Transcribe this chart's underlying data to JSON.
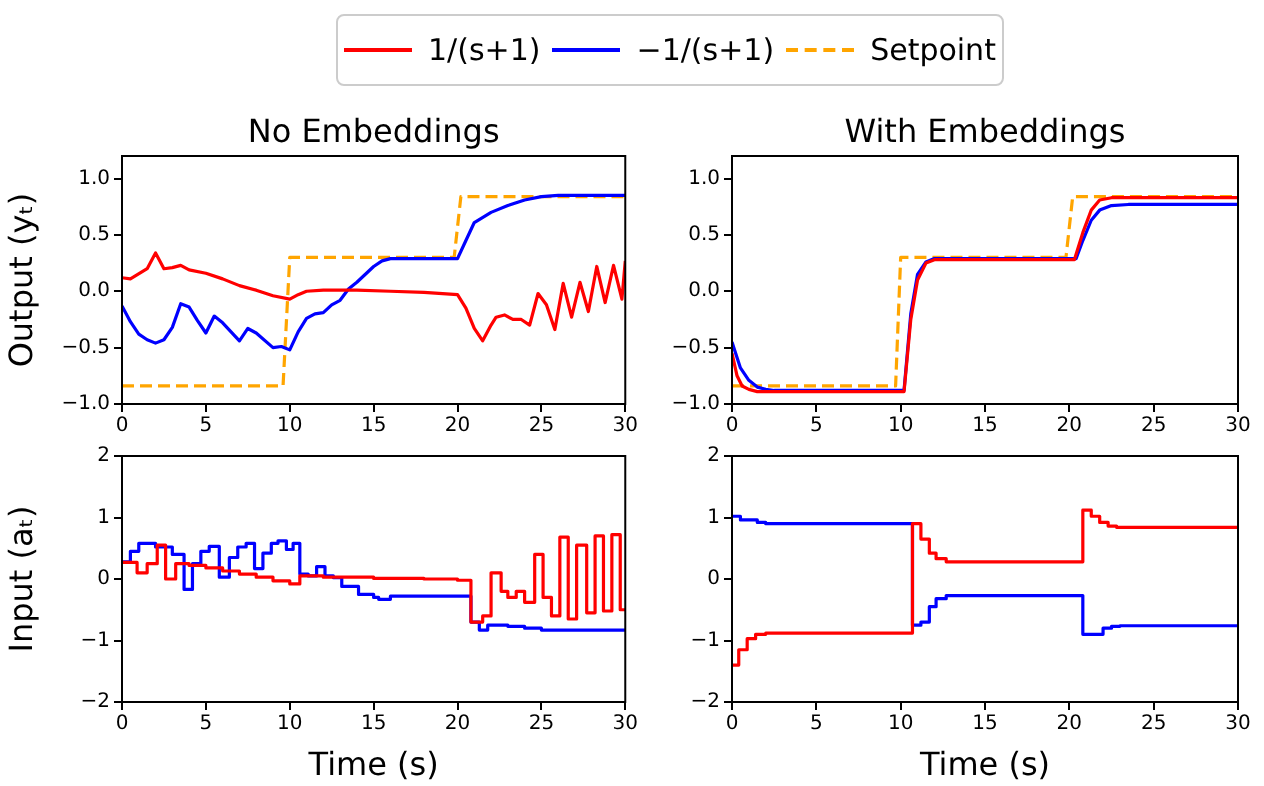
{
  "chart_data": [
    {
      "type": "line",
      "title": "No Embeddings",
      "ylabel": "Output (yₜ)",
      "legend": "top",
      "xlim": [
        0,
        30
      ],
      "xticks": [
        0,
        5,
        10,
        15,
        20,
        25,
        30
      ],
      "ylim": [
        -1,
        1.2
      ],
      "yticks": [
        {
          "value": -1,
          "label": "−1.0"
        },
        {
          "value": -0.5,
          "label": "−0.5"
        },
        {
          "value": 0,
          "label": "0.0"
        },
        0.5,
        {
          "value": 1,
          "label": "1.0"
        }
      ],
      "series": [
        {
          "name": "1/(s+1)",
          "color": "#ff0000",
          "line_style": "solid",
          "x": [
            0,
            0.5,
            1.5,
            2,
            2.5,
            3,
            3.5,
            4,
            5,
            6,
            7,
            8,
            9,
            10,
            10.5,
            11,
            12,
            14,
            16,
            18,
            20,
            20.5,
            21,
            21.5,
            22,
            22.3,
            22.8,
            23.3,
            23.8,
            24.3,
            24.8,
            25.3,
            25.8,
            26.3,
            26.8,
            27.3,
            27.8,
            28.3,
            28.8,
            29.3,
            29.8,
            30
          ],
          "values": [
            0.12,
            0.11,
            0.2,
            0.34,
            0.2,
            0.21,
            0.23,
            0.19,
            0.16,
            0.11,
            0.05,
            0.01,
            -0.04,
            -0.07,
            -0.03,
            0,
            0.01,
            0.01,
            0,
            -0.01,
            -0.03,
            -0.15,
            -0.33,
            -0.44,
            -0.3,
            -0.23,
            -0.21,
            -0.25,
            -0.25,
            -0.3,
            -0.02,
            -0.12,
            -0.34,
            0.07,
            -0.23,
            0.08,
            -0.18,
            0.22,
            -0.1,
            0.23,
            -0.07,
            0.27
          ]
        },
        {
          "name": "−1/(s+1)",
          "color": "#0000ff",
          "line_style": "solid",
          "x": [
            0,
            0.5,
            1,
            1.5,
            2,
            2.5,
            3,
            3.5,
            4,
            4.5,
            5,
            5.5,
            6,
            7,
            7.5,
            8,
            9,
            9.5,
            10,
            10.5,
            11,
            11.5,
            12,
            12.5,
            13,
            13.5,
            14,
            15,
            15.5,
            16,
            20,
            20.5,
            21,
            22,
            23,
            24,
            25,
            26,
            30
          ],
          "values": [
            -0.13,
            -0.27,
            -0.38,
            -0.43,
            -0.46,
            -0.43,
            -0.32,
            -0.11,
            -0.14,
            -0.26,
            -0.37,
            -0.22,
            -0.28,
            -0.44,
            -0.33,
            -0.37,
            -0.5,
            -0.49,
            -0.52,
            -0.36,
            -0.24,
            -0.2,
            -0.19,
            -0.12,
            -0.08,
            0.02,
            0.08,
            0.22,
            0.27,
            0.29,
            0.29,
            0.45,
            0.61,
            0.7,
            0.76,
            0.81,
            0.84,
            0.85,
            0.85
          ]
        },
        {
          "name": "Setpoint",
          "color": "#ffa500",
          "line_style": "dashed",
          "x": [
            0,
            9.6,
            10,
            19.8,
            20.2,
            30
          ],
          "values": [
            -0.84,
            -0.84,
            0.3,
            0.3,
            0.84,
            0.84
          ]
        }
      ]
    },
    {
      "type": "line",
      "title": "With Embeddings",
      "xlim": [
        0,
        30
      ],
      "xticks": [
        0,
        5,
        10,
        15,
        20,
        25,
        30
      ],
      "ylim": [
        -1,
        1.2
      ],
      "yticks": [
        {
          "value": -1,
          "label": "−1.0"
        },
        {
          "value": -0.5,
          "label": "−0.5"
        },
        {
          "value": 0,
          "label": "0.0"
        },
        0.5,
        {
          "value": 1,
          "label": "1.0"
        }
      ],
      "series": [
        {
          "color": "#ff0000",
          "line_style": "solid",
          "x": [
            0,
            0.3,
            0.6,
            1,
            1.5,
            10.2,
            10.6,
            11,
            11.5,
            12,
            20.3,
            20.8,
            21.3,
            21.8,
            22.5,
            30
          ],
          "values": [
            -0.55,
            -0.75,
            -0.84,
            -0.87,
            -0.89,
            -0.89,
            -0.25,
            0.1,
            0.25,
            0.28,
            0.28,
            0.52,
            0.72,
            0.81,
            0.83,
            0.83
          ]
        },
        {
          "color": "#0000ff",
          "line_style": "solid",
          "x": [
            0,
            0.5,
            1,
            1.5,
            2,
            2.5,
            10.2,
            10.6,
            11,
            11.5,
            12,
            20.4,
            20.8,
            21.3,
            21.8,
            22.5,
            23.5,
            30
          ],
          "values": [
            -0.45,
            -0.68,
            -0.79,
            -0.85,
            -0.87,
            -0.88,
            -0.88,
            -0.2,
            0.15,
            0.26,
            0.29,
            0.29,
            0.45,
            0.63,
            0.72,
            0.76,
            0.77,
            0.77
          ]
        },
        {
          "color": "#ffa500",
          "line_style": "dashed",
          "x": [
            0,
            9.7,
            10,
            19.8,
            20.2,
            30
          ],
          "values": [
            -0.84,
            -0.84,
            0.3,
            0.3,
            0.84,
            0.84
          ]
        }
      ]
    },
    {
      "type": "step",
      "xlabel": "Time (s)",
      "ylabel": "Input (aₜ)",
      "xlim": [
        0,
        30
      ],
      "xticks": [
        0,
        5,
        10,
        15,
        20,
        25,
        30
      ],
      "ylim": [
        -2,
        2
      ],
      "yticks": [
        {
          "value": -2,
          "label": "−2"
        },
        {
          "value": -1,
          "label": "−1"
        },
        0,
        1,
        2
      ],
      "series": [
        {
          "color": "#ff0000",
          "line_style": "solid",
          "x": [
            0,
            0.9,
            1.5,
            2.1,
            2.6,
            3.2,
            4,
            5,
            6,
            7,
            8,
            9,
            10,
            10.6,
            12,
            15,
            18,
            20,
            20.8,
            21.5,
            22,
            22.6,
            23,
            23.5,
            24,
            24.6,
            25.1,
            25.6,
            26.1,
            26.6,
            27.1,
            27.7,
            28.2,
            28.7,
            29.2,
            29.7,
            30
          ],
          "values": [
            0.27,
            0.1,
            0.25,
            0.55,
            0,
            0.25,
            0.22,
            0.18,
            0.13,
            0.08,
            0.03,
            -0.03,
            -0.08,
            0.05,
            0.03,
            0.01,
            0,
            -0.02,
            -0.7,
            -0.6,
            0.1,
            -0.2,
            -0.3,
            -0.2,
            -0.38,
            0.4,
            -0.3,
            -0.6,
            0.68,
            -0.65,
            0.55,
            -0.55,
            0.7,
            -0.52,
            0.72,
            -0.5,
            -0.5
          ]
        },
        {
          "color": "#0000ff",
          "line_style": "solid",
          "x": [
            0,
            0.5,
            1,
            2,
            3,
            3.7,
            4.2,
            4.7,
            5.2,
            5.8,
            6.4,
            6.9,
            7.4,
            7.9,
            8.4,
            8.9,
            9.3,
            9.8,
            10.2,
            10.6,
            11.1,
            11.6,
            12.1,
            12.6,
            13.1,
            14.1,
            15,
            15.3,
            16,
            20.8,
            21.3,
            21.8,
            23,
            24,
            25,
            30
          ],
          "values": [
            0.28,
            0.45,
            0.58,
            0.52,
            0.4,
            -0.17,
            0.25,
            0.45,
            0.53,
            0.03,
            0.35,
            0.52,
            0.58,
            0.17,
            0.42,
            0.58,
            0.62,
            0.48,
            0.58,
            0.08,
            0.05,
            0.2,
            0.05,
            0.02,
            -0.12,
            -0.25,
            -0.3,
            -0.33,
            -0.28,
            -0.7,
            -0.83,
            -0.75,
            -0.77,
            -0.8,
            -0.83,
            -0.83
          ]
        }
      ]
    },
    {
      "type": "step",
      "xlabel": "Time (s)",
      "xlim": [
        0,
        30
      ],
      "xticks": [
        0,
        5,
        10,
        15,
        20,
        25,
        30
      ],
      "ylim": [
        -2,
        2
      ],
      "yticks": [
        {
          "value": -2,
          "label": "−2"
        },
        {
          "value": -1,
          "label": "−1"
        },
        0,
        1,
        2
      ],
      "series": [
        {
          "color": "#ff0000",
          "line_style": "solid",
          "x": [
            0,
            0.4,
            0.9,
            1.4,
            2,
            10.7,
            11.2,
            11.7,
            12.1,
            12.7,
            20.8,
            21.3,
            21.8,
            22.3,
            22.8,
            30
          ],
          "values": [
            -1.4,
            -1.15,
            -0.97,
            -0.9,
            -0.88,
            0.9,
            0.65,
            0.42,
            0.33,
            0.28,
            1.12,
            1.02,
            0.92,
            0.86,
            0.84,
            0.84
          ]
        },
        {
          "color": "#0000ff",
          "line_style": "solid",
          "x": [
            0,
            0.5,
            1.5,
            2,
            10.7,
            11.2,
            11.7,
            12.1,
            12.7,
            20.8,
            22,
            22.5,
            23,
            30
          ],
          "values": [
            1.02,
            0.96,
            0.92,
            0.9,
            -0.75,
            -0.7,
            -0.45,
            -0.32,
            -0.27,
            -0.9,
            -0.8,
            -0.77,
            -0.76,
            -0.76
          ]
        }
      ]
    }
  ]
}
